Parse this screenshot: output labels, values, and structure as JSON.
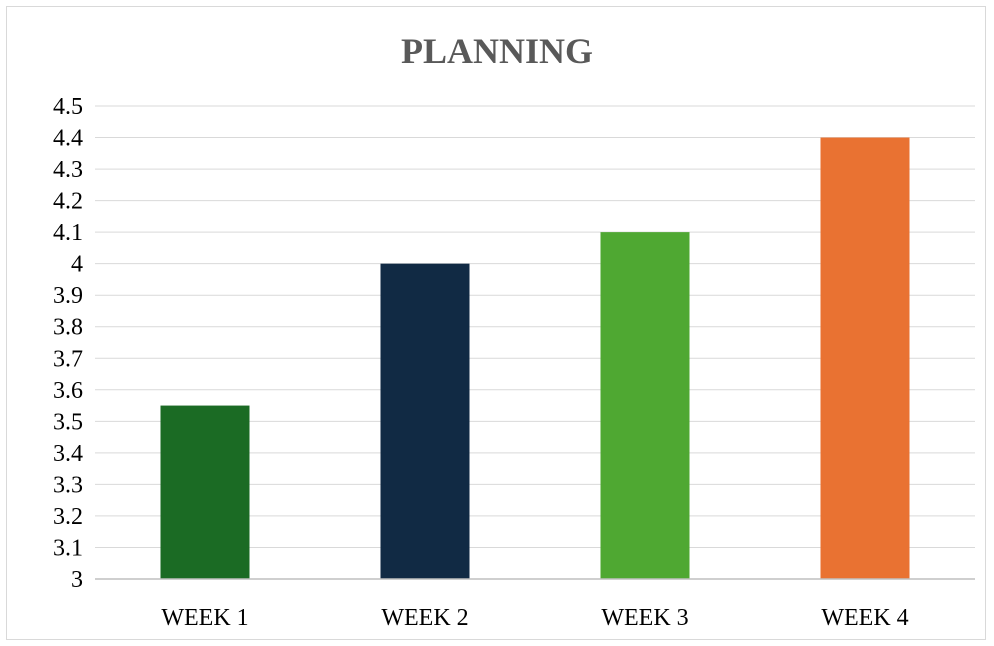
{
  "chart_data": {
    "type": "bar",
    "title": "PLANNING",
    "categories": [
      "WEEK 1",
      "WEEK 2",
      "WEEK 3",
      "WEEK 4"
    ],
    "values": [
      3.55,
      4.0,
      4.1,
      4.4
    ],
    "colors": [
      "#1b6b24",
      "#112a44",
      "#4fa832",
      "#e97232"
    ],
    "ylim": [
      3,
      4.5
    ],
    "yticks": [
      "3",
      "3.1",
      "3.2",
      "3.3",
      "3.4",
      "3.5",
      "3.6",
      "3.7",
      "3.8",
      "3.9",
      "4",
      "4.1",
      "4.2",
      "4.3",
      "4.4",
      "4.5"
    ],
    "grid": true,
    "legend": "none",
    "xlabel": "",
    "ylabel": ""
  },
  "style": {
    "grid_color": "#d9d9d9",
    "title_color": "#595959"
  }
}
